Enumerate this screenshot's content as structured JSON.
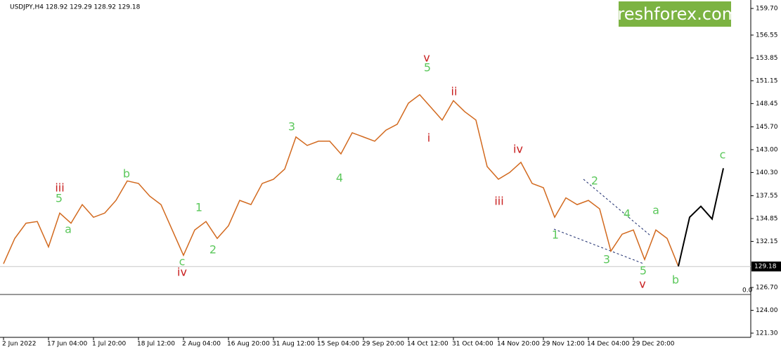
{
  "chart_data": {
    "type": "line",
    "title": "USDJPY,H4  128.92 129.29 128.92 129.18",
    "watermark": "freshforex.com",
    "categories": [
      "2 Jun 2022",
      null,
      null,
      null,
      "17 Jun 04:00",
      null,
      null,
      null,
      "1 Jul 20:00",
      null,
      null,
      null,
      "18 Jul 12:00",
      null,
      null,
      null,
      "2 Aug 04:00",
      null,
      null,
      null,
      "16 Aug 20:00",
      null,
      null,
      null,
      "31 Aug 12:00",
      null,
      null,
      null,
      "15 Sep 04:00",
      null,
      null,
      null,
      "29 Sep 20:00",
      null,
      null,
      null,
      "14 Oct 12:00",
      null,
      null,
      null,
      "31 Oct 04:00",
      null,
      null,
      null,
      "14 Nov 20:00",
      null,
      null,
      null,
      "29 Nov 12:00",
      null,
      null,
      null,
      "14 Dec 04:00",
      null,
      null,
      null,
      "29 Dec 20:00",
      null,
      null,
      null,
      null,
      null,
      null,
      null,
      null
    ],
    "series": [
      {
        "color": "#d2691e",
        "values": [
          129.5,
          132.5,
          134.3,
          134.5,
          131.5,
          135.5,
          134.3,
          136.5,
          135.0,
          135.5,
          137.0,
          139.3,
          139.0,
          137.5,
          136.5,
          133.5,
          130.5,
          133.5,
          134.5,
          132.5,
          134.0,
          137.0,
          136.5,
          139.0,
          139.5,
          140.7,
          144.5,
          143.5,
          144.0,
          144.0,
          142.5,
          145.0,
          144.5,
          144.0,
          145.3,
          146.0,
          148.5,
          149.5,
          148.0,
          146.5,
          148.8,
          147.5,
          146.5,
          141.0,
          139.5,
          140.3,
          141.5,
          139.0,
          138.5,
          135.0,
          137.3,
          136.5,
          137.0,
          136.0,
          131.0,
          133.0,
          133.5,
          130.0,
          133.5,
          132.5,
          129.2,
          null,
          null,
          null,
          null
        ]
      },
      {
        "color": "#000000",
        "values": [
          null,
          null,
          null,
          null,
          null,
          null,
          null,
          null,
          null,
          null,
          null,
          null,
          null,
          null,
          null,
          null,
          null,
          null,
          null,
          null,
          null,
          null,
          null,
          null,
          null,
          null,
          null,
          null,
          null,
          null,
          null,
          null,
          null,
          null,
          null,
          null,
          null,
          null,
          null,
          null,
          null,
          null,
          null,
          null,
          null,
          null,
          null,
          null,
          null,
          null,
          null,
          null,
          null,
          null,
          null,
          null,
          null,
          null,
          null,
          null,
          129.2,
          135.0,
          136.3,
          134.8,
          140.8
        ]
      }
    ],
    "ylim": [
      120.8,
      160.7
    ],
    "yticks": [
      {
        "value": 159.7,
        "label": "159.70"
      },
      156.55,
      153.85,
      151.15,
      148.45,
      {
        "value": 145.7,
        "label": "145.70"
      },
      {
        "value": 143,
        "label": "143.00"
      },
      {
        "value": 140.3,
        "label": "140.30"
      },
      137.55,
      134.85,
      132.15,
      {
        "value": 126.7,
        "label": "126.70"
      },
      {
        "value": 124,
        "label": "124.00"
      },
      {
        "value": 121.3,
        "label": "121.30"
      }
    ],
    "last_price": 129.18,
    "fib_level": {
      "value": 125.87,
      "label": "0.0"
    },
    "annotations": [
      {
        "text": "v",
        "color": "#c81e1e"
      },
      {
        "text": "ii",
        "color": "#c81e1e"
      },
      {
        "text": "i",
        "color": "#c81e1e"
      },
      {
        "text": "iv",
        "color": "#c81e1e"
      },
      {
        "text": "iii",
        "color": "#c81e1e"
      },
      {
        "text": "iii",
        "color": "#c81e1e"
      },
      {
        "text": "iv",
        "color": "#c81e1e"
      },
      {
        "text": "v",
        "color": "#c81e1e"
      },
      {
        "text": "5",
        "color": "#5cc85c"
      },
      {
        "text": "5",
        "color": "#5cc85c"
      },
      {
        "text": "a",
        "color": "#5cc85c"
      },
      {
        "text": "b",
        "color": "#5cc85c"
      },
      {
        "text": "c",
        "color": "#5cc85c"
      },
      {
        "text": "1",
        "color": "#5cc85c"
      },
      {
        "text": "2",
        "color": "#5cc85c"
      },
      {
        "text": "3",
        "color": "#5cc85c"
      },
      {
        "text": "4",
        "color": "#5cc85c"
      },
      {
        "text": "1",
        "color": "#5cc85c"
      },
      {
        "text": "2",
        "color": "#5cc85c"
      },
      {
        "text": "3",
        "color": "#5cc85c"
      },
      {
        "text": "4",
        "color": "#5cc85c"
      },
      {
        "text": "5",
        "color": "#5cc85c"
      },
      {
        "text": "a",
        "color": "#5cc85c"
      },
      {
        "text": "b",
        "color": "#5cc85c"
      },
      {
        "text": "c",
        "color": "#5cc85c"
      }
    ]
  }
}
